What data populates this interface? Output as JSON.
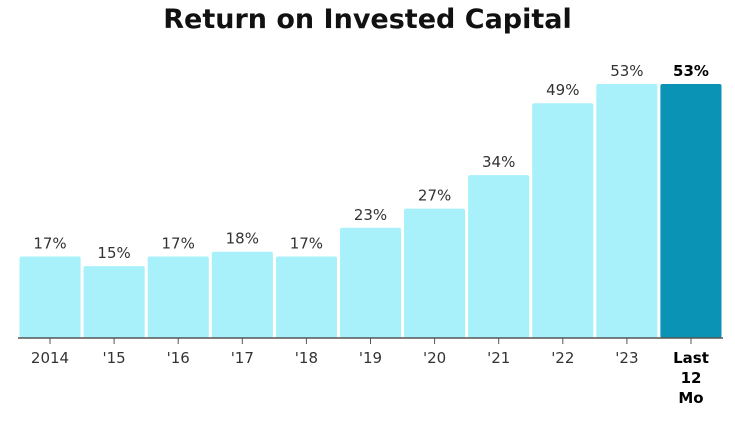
{
  "chart_data": {
    "type": "bar",
    "title": "Return on Invested Capital",
    "categories": [
      "2014",
      "'15",
      "'16",
      "'17",
      "'18",
      "'19",
      "'20",
      "'21",
      "'22",
      "'23",
      "Last 12 Mo"
    ],
    "category_lines": [
      [
        "2014"
      ],
      [
        "'15"
      ],
      [
        "'16"
      ],
      [
        "'17"
      ],
      [
        "'18"
      ],
      [
        "'19"
      ],
      [
        "'20"
      ],
      [
        "'21"
      ],
      [
        "'22"
      ],
      [
        "'23"
      ],
      [
        "Last",
        "12",
        "Mo"
      ]
    ],
    "values": [
      17,
      15,
      17,
      18,
      17,
      23,
      27,
      34,
      49,
      53,
      53
    ],
    "value_labels": [
      "17%",
      "15%",
      "17%",
      "18%",
      "17%",
      "23%",
      "27%",
      "34%",
      "49%",
      "53%",
      "53%"
    ],
    "highlight_index": 10,
    "ylim": [
      0,
      53
    ],
    "grid": false,
    "colors": {
      "bar": "#a8f0fa",
      "highlight": "#0a93b4",
      "axis": "#555555"
    }
  }
}
